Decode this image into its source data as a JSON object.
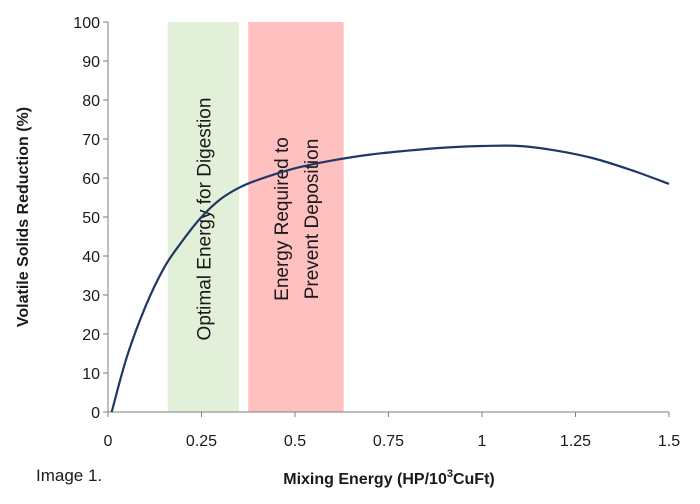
{
  "chart_data": {
    "type": "line",
    "title": "",
    "xlabel": "Mixing Energy (HP/10",
    "xlabel_sup": "3",
    "xlabel_tail": "CuFt)",
    "ylabel": "Volatile Solids Reduction (%)",
    "xlim": [
      0,
      1.5
    ],
    "ylim": [
      0,
      100
    ],
    "xticks": [
      0,
      0.25,
      0.5,
      0.75,
      1,
      1.25,
      1.5
    ],
    "xtick_labels": [
      "0",
      "0.25",
      "0.5",
      "0.75",
      "1",
      "1.25",
      "1.5"
    ],
    "yticks": [
      0,
      10,
      20,
      30,
      40,
      50,
      60,
      70,
      80,
      90,
      100
    ],
    "ytick_labels": [
      "0",
      "10",
      "20",
      "30",
      "40",
      "50",
      "60",
      "70",
      "80",
      "90",
      "100"
    ],
    "grid": false,
    "series": [
      {
        "color": "#1f3864",
        "x": [
          0.01,
          0.05,
          0.1,
          0.15,
          0.2,
          0.25,
          0.3,
          0.35,
          0.4,
          0.5,
          0.6,
          0.7,
          0.8,
          0.9,
          1.0,
          1.1,
          1.2,
          1.3,
          1.4,
          1.5
        ],
        "y": [
          0,
          14,
          27,
          37,
          44,
          50,
          54.5,
          57.5,
          59.5,
          62.5,
          64.5,
          66,
          67,
          67.8,
          68.2,
          68.2,
          67,
          65,
          62,
          58.5
        ]
      }
    ],
    "bands": [
      {
        "x0": 0.16,
        "x1": 0.35,
        "color": "#e2efd9",
        "label_lines": [
          "Optimal Energy for Digestion"
        ]
      },
      {
        "x0": 0.375,
        "x1": 0.63,
        "color": "#ffc0c0",
        "label_lines": [
          "Energy Required to",
          "Prevent Deposition"
        ]
      }
    ]
  },
  "caption": "Image 1."
}
